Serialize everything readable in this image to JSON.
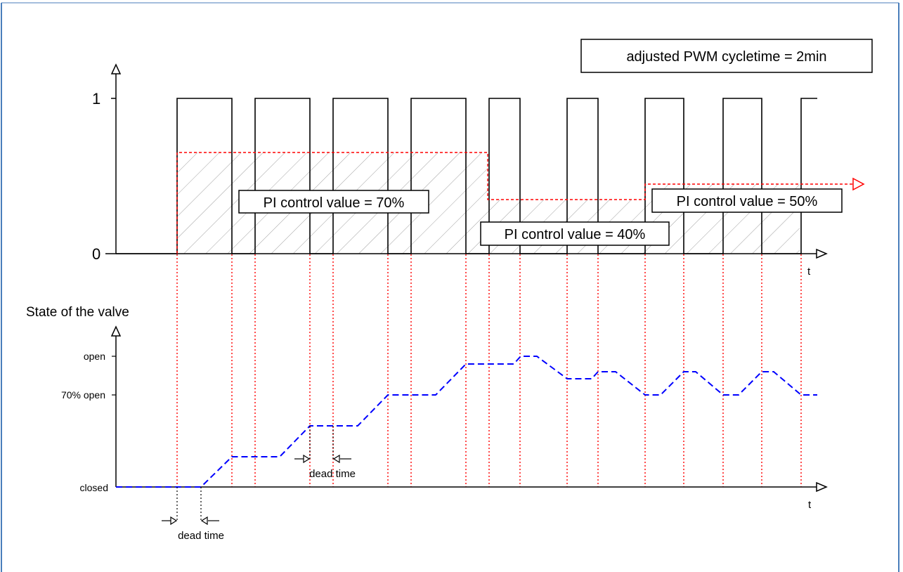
{
  "diagram": {
    "cycle_box_text": "adjusted PWM cycletime = 2min",
    "pwm_axis": {
      "tick_high": "1",
      "tick_low": "0",
      "time_label": "t"
    },
    "control_values": [
      {
        "label": "PI control value = 70%"
      },
      {
        "label": "PI control value = 40%"
      },
      {
        "label": "PI control value = 50%"
      }
    ],
    "valve_axis": {
      "title": "State of the valve",
      "level_open": "open",
      "level_70": "70% open",
      "level_closed": "closed",
      "time_label": "t"
    },
    "dead_time_label": "dead time",
    "colors": {
      "pwm_signal": "#000000",
      "control_value_line": "#ff0000",
      "sync_lines": "#ff0000",
      "valve_state": "#0000ff",
      "hatch": "#a0a0a0",
      "frame_border": "#4a7ebb"
    }
  }
}
